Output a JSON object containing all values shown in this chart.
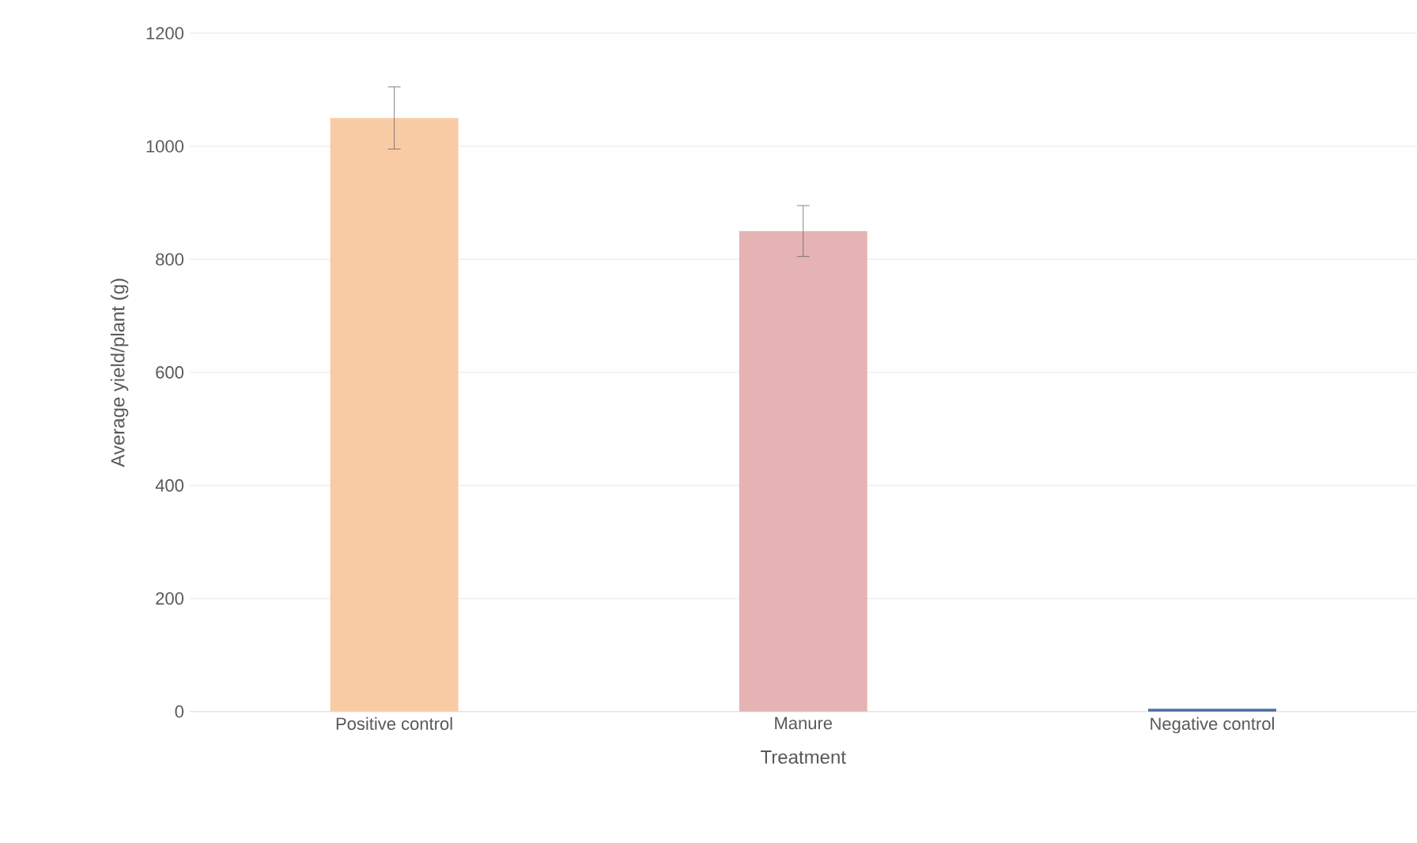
{
  "chart_data": {
    "type": "bar",
    "xlabel": "Treatment",
    "ylabel": "Average yield/plant (g)",
    "categories": [
      "Positive control",
      "Manure",
      "Negative control"
    ],
    "values": [
      1050,
      850,
      5
    ],
    "errors": [
      55,
      45,
      null
    ],
    "colors": [
      "#f9cba5",
      "#e5b3b3",
      "#4a6fa5"
    ],
    "ylim": [
      0,
      1200
    ],
    "yticks": [
      0,
      200,
      400,
      600,
      800,
      1000,
      1200
    ],
    "grid": "y"
  }
}
